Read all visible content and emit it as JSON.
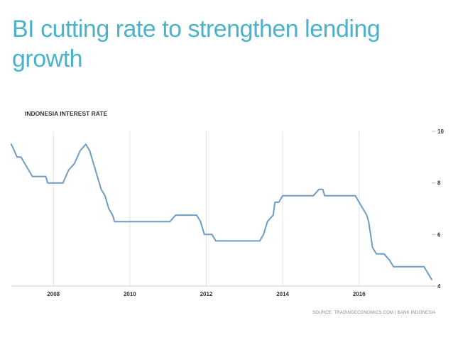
{
  "slide": {
    "title": "BI cutting rate to strengthen lending growth"
  },
  "chart_data": {
    "type": "line",
    "title": "INDONESIA INTEREST RATE",
    "source": "SOURCE: TRADINGECONOMICS.COM | BANK INDONESIA",
    "xlabel": "",
    "ylabel": "",
    "xlim": [
      2006.9,
      2017.9
    ],
    "ylim": [
      4,
      10
    ],
    "x_ticks": [
      2008,
      2010,
      2012,
      2014,
      2016
    ],
    "y_ticks": [
      4,
      6,
      8,
      10
    ],
    "y_axis_position": "right",
    "grid": "vertical",
    "line_color": "#6f9cc4",
    "series": [
      {
        "x": [
          2006.9,
          2007.05,
          2007.15,
          2007.45,
          2007.8,
          2007.85,
          2008.25,
          2008.4,
          2008.55,
          2008.7,
          2008.85,
          2008.95,
          2009.05,
          2009.15,
          2009.25,
          2009.35,
          2009.45,
          2009.55,
          2009.6,
          2010.55,
          2011.05,
          2011.2,
          2011.75,
          2011.85,
          2011.95,
          2012.15,
          2012.25,
          2013.4,
          2013.5,
          2013.6,
          2013.75,
          2013.8,
          2013.9,
          2014.0,
          2014.8,
          2014.95,
          2015.05,
          2015.1,
          2015.2,
          2015.9,
          2016.1,
          2016.2,
          2016.25,
          2016.35,
          2016.45,
          2016.65,
          2016.8,
          2016.9,
          2017.7,
          2017.8,
          2017.9
        ],
        "y": [
          9.5,
          9.0,
          9.0,
          8.25,
          8.25,
          8.0,
          8.0,
          8.5,
          8.75,
          9.25,
          9.5,
          9.25,
          8.75,
          8.25,
          7.75,
          7.5,
          7.0,
          6.75,
          6.5,
          6.5,
          6.5,
          6.75,
          6.75,
          6.5,
          6.0,
          6.0,
          5.75,
          5.75,
          6.0,
          6.5,
          6.75,
          7.25,
          7.25,
          7.5,
          7.5,
          7.75,
          7.75,
          7.5,
          7.5,
          7.5,
          7.0,
          6.75,
          6.5,
          5.5,
          5.25,
          5.25,
          5.0,
          4.75,
          4.75,
          4.5,
          4.25
        ]
      }
    ]
  }
}
